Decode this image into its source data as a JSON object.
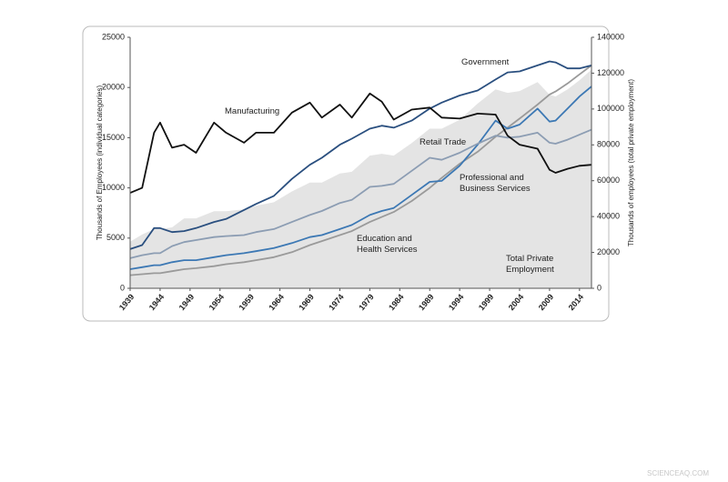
{
  "chart_data": {
    "type": "line",
    "y_label": "Thousands of Employees (individual categories)",
    "y2_label": "Thousands of employees (total private employment)",
    "xlim": [
      1939,
      2016
    ],
    "xticks": [
      1939,
      1944,
      1949,
      1954,
      1959,
      1964,
      1969,
      1974,
      1979,
      1984,
      1989,
      1994,
      1999,
      2004,
      2009,
      2014
    ],
    "ylim": [
      0,
      25000
    ],
    "yticks": [
      0,
      5000,
      10000,
      15000,
      20000,
      25000
    ],
    "y2lim": [
      0,
      140000
    ],
    "y2ticks": [
      0,
      20000,
      40000,
      60000,
      80000,
      100000,
      120000,
      140000
    ],
    "x": [
      1939,
      1941,
      1943,
      1944,
      1946,
      1948,
      1950,
      1953,
      1955,
      1958,
      1960,
      1963,
      1966,
      1969,
      1971,
      1974,
      1976,
      1979,
      1981,
      1983,
      1986,
      1989,
      1991,
      1994,
      1997,
      2000,
      2002,
      2004,
      2007,
      2009,
      2010,
      2012,
      2014,
      2016
    ],
    "series": [
      {
        "name": "Total Private Employment",
        "axis": "y2",
        "area": true,
        "color": "#e4e4e4",
        "values": [
          26000,
          30000,
          33000,
          33000,
          34000,
          39000,
          39000,
          43000,
          43000,
          44000,
          46000,
          48000,
          54000,
          59000,
          59000,
          64000,
          65000,
          74000,
          75000,
          74000,
          81000,
          89000,
          89000,
          94000,
          103000,
          111000,
          109000,
          110000,
          115000,
          108000,
          107000,
          111000,
          116000,
          122000
        ]
      },
      {
        "name": "Education and Health Services",
        "color": "#9a9a9a",
        "values": [
          1300,
          1400,
          1500,
          1500,
          1700,
          1900,
          2000,
          2200,
          2400,
          2600,
          2800,
          3100,
          3600,
          4300,
          4700,
          5300,
          5700,
          6600,
          7100,
          7600,
          8700,
          10000,
          11000,
          12400,
          13600,
          15100,
          16000,
          16900,
          18300,
          19300,
          19600,
          20400,
          21300,
          22200
        ]
      },
      {
        "name": "Professional and Business Services",
        "color": "#3c78b4",
        "values": [
          1900,
          2100,
          2300,
          2300,
          2600,
          2800,
          2800,
          3100,
          3300,
          3500,
          3700,
          4000,
          4500,
          5100,
          5300,
          5900,
          6300,
          7300,
          7700,
          8000,
          9300,
          10600,
          10700,
          12200,
          14300,
          16700,
          15900,
          16300,
          17900,
          16600,
          16700,
          17900,
          19100,
          20100
        ]
      },
      {
        "name": "Retail Trade",
        "color": "#8c9db3",
        "values": [
          3000,
          3300,
          3500,
          3500,
          4200,
          4600,
          4800,
          5100,
          5200,
          5300,
          5600,
          5900,
          6600,
          7300,
          7700,
          8500,
          8800,
          10100,
          10200,
          10400,
          11700,
          13000,
          12800,
          13500,
          14400,
          15200,
          15000,
          15100,
          15500,
          14500,
          14400,
          14800,
          15300,
          15800
        ]
      },
      {
        "name": "Government",
        "color": "#2a4f7f",
        "values": [
          3900,
          4300,
          6000,
          6000,
          5600,
          5700,
          6000,
          6600,
          6900,
          7800,
          8400,
          9200,
          10900,
          12300,
          13000,
          14300,
          14900,
          15900,
          16200,
          16000,
          16700,
          17900,
          18500,
          19200,
          19700,
          20800,
          21500,
          21600,
          22200,
          22600,
          22500,
          21900,
          21900,
          22200
        ]
      },
      {
        "name": "Manufacturing",
        "color": "#111111",
        "values": [
          9500,
          10000,
          15500,
          16500,
          14000,
          14300,
          13500,
          16500,
          15500,
          14500,
          15500,
          15500,
          17500,
          18500,
          17000,
          18300,
          17000,
          19400,
          18600,
          16800,
          17800,
          18000,
          17000,
          16900,
          17400,
          17300,
          15200,
          14300,
          13900,
          11800,
          11500,
          11900,
          12200,
          12300
        ]
      }
    ],
    "watermark": "SCIENCEAQ.COM"
  }
}
